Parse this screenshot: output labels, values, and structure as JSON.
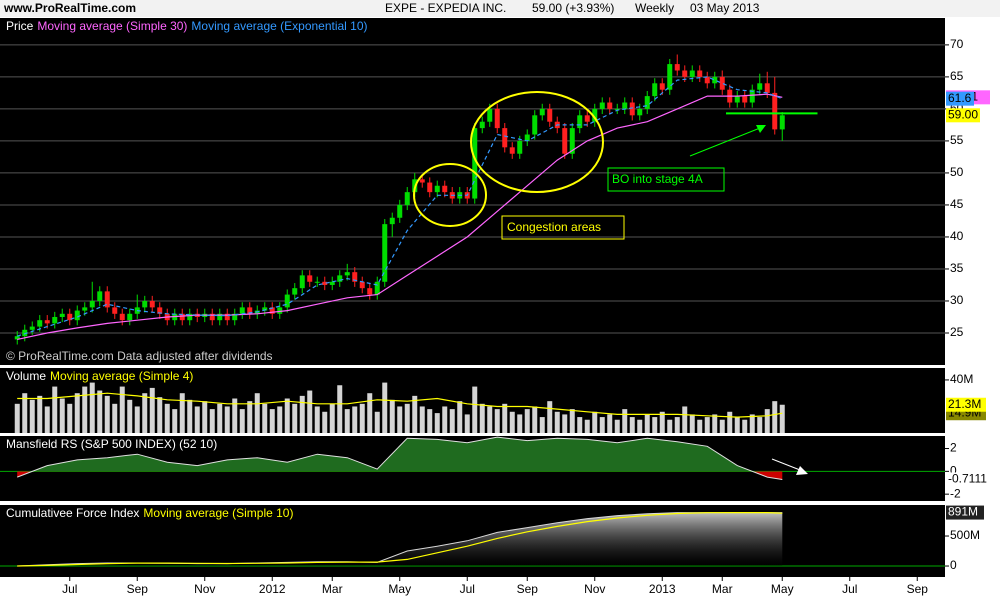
{
  "header": {
    "site": "www.ProRealTime.com",
    "symbol": "EXPE - EXPEDIA INC.",
    "quote": "59.00 (+3.93%)",
    "period": "Weekly",
    "date": "03 May 2013"
  },
  "chart_data": [
    {
      "type": "candlestick",
      "title": "Price",
      "xlim": [
        -2.3,
        123.7
      ],
      "ylim": [
        20,
        74.2
      ],
      "yticks": [
        25,
        30,
        35,
        40,
        45,
        50,
        55,
        60,
        65,
        70
      ],
      "grid": true,
      "up_color": "#00dd00",
      "down_color": "#ff2020",
      "ohlc": [
        [
          24,
          25.3,
          23.2,
          24.5
        ],
        [
          24.5,
          26.3,
          23.7,
          25.5
        ],
        [
          25.5,
          26.8,
          24.7,
          26
        ],
        [
          26,
          27.8,
          25.2,
          27
        ],
        [
          27,
          27.8,
          25.7,
          26.5
        ],
        [
          26.5,
          28.3,
          25.7,
          27.5
        ],
        [
          27.5,
          28.8,
          26.7,
          28
        ],
        [
          28,
          28.8,
          26.2,
          27
        ],
        [
          27,
          29.3,
          26.2,
          28.5
        ],
        [
          28.5,
          29.8,
          27.7,
          29
        ],
        [
          29,
          33,
          28.2,
          30
        ],
        [
          30,
          32.3,
          29.2,
          31.5
        ],
        [
          31.5,
          32.3,
          28.2,
          29
        ],
        [
          29,
          29.8,
          27.2,
          28
        ],
        [
          28,
          28.8,
          26.2,
          27
        ],
        [
          27,
          28.8,
          26.2,
          28
        ],
        [
          28,
          31,
          27.2,
          29
        ],
        [
          29,
          30.8,
          28.2,
          30
        ],
        [
          30,
          30.8,
          28.2,
          29
        ],
        [
          29,
          29.8,
          27.2,
          28
        ],
        [
          28,
          28.8,
          26.2,
          27
        ],
        [
          27,
          28.8,
          26.2,
          28
        ],
        [
          28,
          28.8,
          26.2,
          27
        ],
        [
          27,
          28.8,
          26.2,
          28
        ],
        [
          28,
          28.8,
          26.7,
          27.5
        ],
        [
          27.5,
          28.8,
          26.7,
          28
        ],
        [
          28,
          28.8,
          26.2,
          27
        ],
        [
          27,
          28.8,
          26.2,
          28
        ],
        [
          28,
          28.8,
          26.2,
          27
        ],
        [
          27,
          28.8,
          26.2,
          28
        ],
        [
          28,
          29.8,
          27.2,
          29
        ],
        [
          29,
          29.8,
          27.2,
          28
        ],
        [
          28,
          29.3,
          27.2,
          28.5
        ],
        [
          28.5,
          29.8,
          27.7,
          29
        ],
        [
          29,
          29.8,
          27.2,
          28
        ],
        [
          28,
          29.8,
          27.2,
          29
        ],
        [
          29,
          31.8,
          28.2,
          31
        ],
        [
          31,
          32.8,
          30.2,
          32
        ],
        [
          32,
          34.8,
          31.2,
          34
        ],
        [
          34,
          34.8,
          32.2,
          33
        ],
        [
          33,
          33.8,
          32.2,
          33
        ],
        [
          33,
          33.8,
          31.7,
          32.5
        ],
        [
          32.5,
          33.8,
          31.7,
          33
        ],
        [
          33,
          34.8,
          32.2,
          34
        ],
        [
          34,
          35.8,
          33.2,
          34.5
        ],
        [
          34.5,
          35.3,
          32.2,
          33
        ],
        [
          33,
          33.8,
          31.2,
          32
        ],
        [
          32,
          32.8,
          30.2,
          31
        ],
        [
          31,
          33.8,
          30.2,
          33
        ],
        [
          33,
          42.8,
          32.2,
          42
        ],
        [
          42,
          43.8,
          40,
          43
        ],
        [
          43,
          45.8,
          42.2,
          45
        ],
        [
          45,
          47.8,
          44.2,
          47
        ],
        [
          47,
          50,
          46.2,
          49
        ],
        [
          49,
          49.8,
          47.7,
          48.5
        ],
        [
          48.5,
          49.3,
          46.2,
          47
        ],
        [
          47,
          48.8,
          46.2,
          48
        ],
        [
          48,
          48.8,
          46.2,
          47
        ],
        [
          47,
          47.8,
          45.2,
          46
        ],
        [
          46,
          47.8,
          45.2,
          47
        ],
        [
          47,
          47.8,
          45.2,
          46
        ],
        [
          46,
          57.8,
          45.2,
          57
        ],
        [
          57,
          58.8,
          56.2,
          58
        ],
        [
          58,
          60.8,
          57.2,
          60
        ],
        [
          60,
          60.8,
          56.2,
          57
        ],
        [
          57,
          57.8,
          53.2,
          54
        ],
        [
          54,
          54.8,
          52.2,
          53
        ],
        [
          53,
          55.8,
          52.2,
          55
        ],
        [
          55,
          56.8,
          54.2,
          56
        ],
        [
          56,
          59.8,
          55.2,
          59
        ],
        [
          59,
          60.8,
          58.2,
          60
        ],
        [
          60,
          60.8,
          57.2,
          58
        ],
        [
          58,
          58.8,
          56.2,
          57
        ],
        [
          57,
          57.8,
          52.2,
          53
        ],
        [
          53,
          57.8,
          52.2,
          57
        ],
        [
          57,
          59.8,
          56.2,
          59
        ],
        [
          59,
          59.8,
          57.2,
          58
        ],
        [
          58,
          60.8,
          57.2,
          60
        ],
        [
          60,
          61.8,
          59.2,
          61
        ],
        [
          61,
          61.8,
          59.2,
          60
        ],
        [
          60,
          60.8,
          59.2,
          60
        ],
        [
          60,
          61.8,
          59.2,
          61
        ],
        [
          61,
          61.8,
          58.2,
          59
        ],
        [
          59,
          60.8,
          58.2,
          60
        ],
        [
          60,
          62.8,
          59.2,
          62
        ],
        [
          62,
          64.8,
          61.2,
          64
        ],
        [
          64,
          64.8,
          62.2,
          63
        ],
        [
          63,
          67.8,
          62.2,
          67
        ],
        [
          67,
          68.5,
          65.2,
          66
        ],
        [
          66,
          66.8,
          64.2,
          65
        ],
        [
          65,
          66.8,
          64.2,
          66
        ],
        [
          66,
          66.8,
          64.2,
          65
        ],
        [
          65,
          65.8,
          63.2,
          64
        ],
        [
          64,
          65.8,
          63.2,
          65
        ],
        [
          65,
          66,
          62.2,
          63
        ],
        [
          63,
          63.8,
          60.2,
          61
        ],
        [
          61,
          62.8,
          60.2,
          62
        ],
        [
          62,
          62.8,
          60.2,
          61
        ],
        [
          61,
          63.8,
          60.2,
          63
        ],
        [
          63,
          65.5,
          62.2,
          64
        ],
        [
          64,
          65.8,
          61.7,
          62.5
        ],
        [
          62.5,
          65,
          56,
          56.8
        ],
        [
          56.8,
          59.5,
          55,
          59
        ]
      ],
      "last_value_label": "59.00",
      "series": [
        {
          "name": "Moving average (Simple 30)",
          "color": "#ff66ff",
          "x": [
            0,
            4,
            8,
            12,
            16,
            20,
            24,
            28,
            32,
            36,
            40,
            44,
            48,
            52,
            56,
            60,
            64,
            68,
            72,
            76,
            80,
            84,
            88,
            92,
            96,
            100,
            102
          ],
          "values": [
            24,
            25,
            25.8,
            26.5,
            27,
            27.5,
            27.8,
            27.8,
            28,
            28.5,
            29.5,
            30.5,
            31,
            34,
            37,
            40,
            44,
            48,
            52,
            55,
            57,
            58,
            60,
            62,
            62,
            62.3,
            61.81
          ]
        },
        {
          "name": "Moving average (Exponential 10)",
          "color": "#3399ff",
          "style": "dashed",
          "x": [
            0,
            4,
            8,
            12,
            16,
            20,
            24,
            28,
            32,
            36,
            40,
            44,
            48,
            52,
            56,
            60,
            64,
            68,
            72,
            76,
            80,
            84,
            88,
            92,
            96,
            100,
            102
          ],
          "values": [
            24.5,
            26,
            27.5,
            29.5,
            28.5,
            28,
            27.8,
            27.7,
            28.3,
            29.5,
            32.5,
            33.5,
            32.5,
            41,
            46.5,
            46.5,
            56,
            55,
            57.5,
            57.5,
            59.8,
            60.5,
            64.5,
            65,
            63,
            62.5,
            61.6
          ]
        }
      ],
      "footnote": "© ProRealTime.com  Data adjusted after dividends",
      "annotations": [
        {
          "text": "Congestion areas",
          "color": "#ffff00"
        },
        {
          "text": "BO into stage 4A",
          "color": "#00ff00"
        }
      ],
      "breakout_line": {
        "y": 59.3,
        "x": [
          94.5,
          106.7
        ],
        "color": "#00ff00"
      }
    },
    {
      "type": "bar",
      "title": "Volume",
      "xlim": [
        -2.3,
        123.7
      ],
      "ylim": [
        0,
        49
      ],
      "yticks": [
        {
          "value": 40,
          "label": "40M"
        }
      ],
      "color": "#d4d4d4",
      "values": [
        22,
        30,
        25,
        28,
        20,
        35,
        26,
        22,
        30,
        35,
        38,
        32,
        28,
        22,
        35,
        25,
        20,
        30,
        34,
        27,
        22,
        18,
        30,
        25,
        20,
        24,
        18,
        22,
        20,
        26,
        18,
        24,
        30,
        22,
        18,
        20,
        26,
        22,
        28,
        32,
        20,
        16,
        22,
        36,
        18,
        20,
        22,
        30,
        16,
        38,
        25,
        20,
        22,
        28,
        20,
        18,
        15,
        20,
        18,
        24,
        14,
        35,
        22,
        20,
        18,
        22,
        16,
        14,
        18,
        20,
        12,
        24,
        16,
        14,
        18,
        12,
        10,
        16,
        12,
        14,
        10,
        18,
        12,
        10,
        14,
        12,
        16,
        10,
        12,
        20,
        14,
        10,
        12,
        14,
        10,
        16,
        12,
        10,
        14,
        12,
        18,
        24,
        21.3
      ],
      "last_value_label": "21.3M",
      "series": [
        {
          "name": "Moving average (Simple 4)",
          "color": "#ffff00",
          "x": [
            0,
            4,
            8,
            12,
            16,
            20,
            24,
            28,
            32,
            36,
            40,
            44,
            48,
            52,
            56,
            60,
            64,
            68,
            72,
            76,
            80,
            84,
            88,
            92,
            96,
            100,
            102
          ],
          "values": [
            26,
            26,
            28,
            30,
            28,
            25,
            24,
            22,
            22,
            24,
            22,
            22,
            25,
            24,
            26,
            22,
            20,
            20,
            18,
            16,
            14,
            14,
            14,
            13,
            12,
            13,
            14.9
          ],
          "last_value_label": "14.9M"
        }
      ]
    },
    {
      "type": "area",
      "title": "Mansfield RS (S&P 500 INDEX) (52 10)",
      "xlim": [
        -2.3,
        123.7
      ],
      "ylim": [
        -2.6,
        3.1
      ],
      "yticks": [
        -2,
        0,
        2
      ],
      "zero_line": true,
      "color": "#e0e0e0",
      "fill_color": "#1f6b1f",
      "negative_color": "#cc0000",
      "x": [
        0,
        4,
        8,
        12,
        16,
        20,
        24,
        28,
        32,
        36,
        40,
        44,
        48,
        52,
        56,
        60,
        64,
        68,
        72,
        76,
        80,
        84,
        88,
        92,
        96,
        100,
        102
      ],
      "values": [
        -0.5,
        0.5,
        1,
        1.2,
        1.5,
        0.8,
        0.5,
        1,
        1.2,
        0.8,
        1.5,
        1.2,
        0.2,
        2.9,
        2.8,
        2.5,
        3,
        2.7,
        2.9,
        2.8,
        2.5,
        2.9,
        2.6,
        2.2,
        0.5,
        -0.5,
        -0.7111
      ]
    },
    {
      "type": "area",
      "title": "Cumulativee Force Index",
      "xlim": [
        -2.3,
        123.7
      ],
      "ylim": [
        -183,
        1017
      ],
      "yticks": [
        0,
        {
          "value": 500,
          "label": "500M"
        }
      ],
      "zero_line": true,
      "color": "#d8d8d8",
      "fill_color": "#d8d8d8",
      "x": [
        0,
        4,
        8,
        12,
        16,
        20,
        24,
        28,
        32,
        36,
        40,
        44,
        48,
        52,
        56,
        60,
        64,
        68,
        72,
        76,
        80,
        84,
        88,
        92,
        96,
        100,
        102
      ],
      "values": [
        0,
        20,
        40,
        50,
        50,
        45,
        40,
        40,
        50,
        60,
        70,
        70,
        60,
        250,
        330,
        420,
        560,
        640,
        720,
        790,
        840,
        870,
        891,
        891,
        891,
        891,
        891
      ],
      "last_value_label": "891M",
      "series": [
        {
          "name": "Moving average (Simple 10)",
          "color": "#ffff00",
          "x": [
            0,
            4,
            8,
            12,
            16,
            20,
            24,
            28,
            32,
            36,
            40,
            44,
            48,
            52,
            56,
            60,
            64,
            68,
            72,
            76,
            80,
            84,
            88,
            92,
            96,
            100,
            102
          ],
          "values": [
            0,
            10,
            25,
            40,
            48,
            48,
            45,
            42,
            45,
            50,
            60,
            65,
            65,
            110,
            220,
            330,
            460,
            570,
            660,
            740,
            800,
            845,
            875,
            888,
            891,
            891,
            880
          ]
        }
      ],
      "xticks": [
        {
          "value": 7,
          "label": "Jul"
        },
        {
          "value": 16,
          "label": "Sep"
        },
        {
          "value": 25,
          "label": "Nov"
        },
        {
          "value": 34,
          "label": "2012"
        },
        {
          "value": 42,
          "label": "Mar"
        },
        {
          "value": 51,
          "label": "May"
        },
        {
          "value": 60,
          "label": "Jul"
        },
        {
          "value": 68,
          "label": "Sep"
        },
        {
          "value": 77,
          "label": "Nov"
        },
        {
          "value": 86,
          "label": "2013"
        },
        {
          "value": 94,
          "label": "Mar"
        },
        {
          "value": 102,
          "label": "May"
        },
        {
          "value": 111,
          "label": "Jul"
        },
        {
          "value": 120,
          "label": "Sep"
        }
      ]
    }
  ]
}
